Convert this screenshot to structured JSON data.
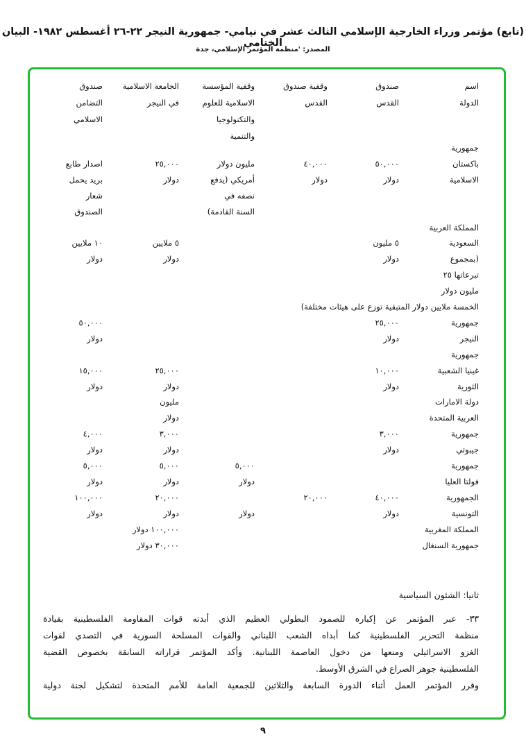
{
  "header": {
    "title": "(تابع) مؤتمر وزراء الخارجية الإسلامي الثالث عشر في نيامي- جمهورية النيجر ٢٢-٢٦ أغسطس ١٩٨٢- البيان الختامي",
    "source": "المصدر: 'منظمة المؤتمر الإسلامي، جدة"
  },
  "frame_color": "#22bb33",
  "table": {
    "headers": [
      [
        "اسم",
        "الدولة"
      ],
      [
        "صندوق",
        "القدس"
      ],
      [
        "وقفية صندوق",
        "القدس"
      ],
      [
        "وقفية المؤسسة",
        "الاسلامية للعلوم",
        "والتكنولوجيا",
        "والتنمية"
      ],
      [
        "الجامعة الاسلامية",
        "في النيجر"
      ],
      [
        "صندوق",
        "التضامن",
        "الاسلامي"
      ]
    ],
    "rows": [
      [
        "جمهورية",
        "",
        "",
        "",
        "",
        ""
      ],
      [
        "باكستان",
        "٥٠,٠٠٠",
        "٤٠,٠٠٠",
        "مليون دولار",
        "٢٥,٠٠٠",
        "اصدار طابع"
      ],
      [
        "الاسلامية",
        "دولار",
        "دولار",
        "أمريكي (يدفع",
        "دولار",
        "بريد يحمل"
      ],
      [
        "",
        "",
        "",
        "نصفه في",
        "",
        "شعار"
      ],
      [
        "",
        "",
        "",
        "السنة القادمة)",
        "",
        "الصندوق"
      ],
      [
        "المملكة العربية",
        "",
        "",
        "",
        "",
        ""
      ],
      [
        "السعودية",
        "٥ مليون",
        "",
        "",
        "٥ ملايين",
        "١٠ ملايين"
      ],
      [
        "(بمجموع",
        "دولار",
        "",
        "",
        "دولار",
        "دولار"
      ],
      [
        "تبرعاتها ٢٥",
        "",
        "",
        "",
        "",
        ""
      ],
      [
        "مليون دولار",
        "",
        "",
        "",
        "",
        ""
      ],
      [
        "الخمسة ملايين دولار المتبقية توزع على هيئات مختلفة)",
        "",
        "",
        "",
        "",
        ""
      ],
      [
        "جمهورية",
        "٢٥,٠٠٠",
        "",
        "",
        "",
        "٥٠,٠٠٠"
      ],
      [
        "النيجر",
        "دولار",
        "",
        "",
        "",
        "دولار"
      ],
      [
        "جمهورية",
        "",
        "",
        "",
        "",
        ""
      ],
      [
        "غينيا الشعبية",
        "١٠,٠٠٠",
        "",
        "",
        "٢٥,٠٠٠",
        "١٥,٠٠٠"
      ],
      [
        "الثورية",
        "دولار",
        "",
        "",
        "دولار",
        "دولار"
      ],
      [
        "دولة الامارات",
        "",
        "",
        "",
        "مليون",
        ""
      ],
      [
        "العربية المتحدة",
        "",
        "",
        "",
        "دولار",
        ""
      ],
      [
        "جمهورية",
        "٣,٠٠٠",
        "",
        "",
        "٣,٠٠٠",
        "٤,٠٠٠"
      ],
      [
        "جيبوتي",
        "دولار",
        "",
        "",
        "دولار",
        "دولار"
      ],
      [
        "جمهورية",
        "",
        "",
        "٥,٠٠٠",
        "٥,٠٠٠",
        "٥,٠٠٠"
      ],
      [
        "فولتا العليا",
        "",
        "",
        "دولار",
        "دولار",
        "دولار"
      ],
      [
        "الجمهورية",
        "٤٠,٠٠٠",
        "٢٠,٠٠٠",
        "",
        "٢٠,٠٠٠",
        "١٠٠,٠٠٠"
      ],
      [
        "التونسية",
        "دولار",
        "",
        "دولار",
        "دولار",
        "دولار"
      ],
      [
        "المملكة المغربية",
        "",
        "",
        "",
        "١٠٠,٠٠٠ دولار",
        ""
      ],
      [
        "جمهورية السنغال",
        "",
        "",
        "",
        "٣٠,٠٠٠ دولار",
        ""
      ]
    ]
  },
  "section": {
    "heading": "ثانيا: الشئون السياسية",
    "paragraph_lines": [
      "٣٣- عبر المؤتمر عن إكباره للصمود البطولي العظيم الذي أبدته قوات المقاومة الفلسطينية بقيادة",
      "منظمة التحرير الفلسطينية كما أبداه الشعب اللبناني والقوات المسلحة السورية في التصدي لقوات",
      "الغزو الاسرائيلي ومنعها من دخول العاصمة اللبنانية. وأكد المؤتمر قراراته السابقة بخصوص القضية",
      "الفلسطينية جوهر الصراع في الشرق الأوسط.",
      "وقرر المؤتمر العمل أثناء الدورة السابعة والثلاثين للجمعية العامة للأمم المتحدة لتشكيل لجنة دولية"
    ]
  },
  "page_number": "٩"
}
